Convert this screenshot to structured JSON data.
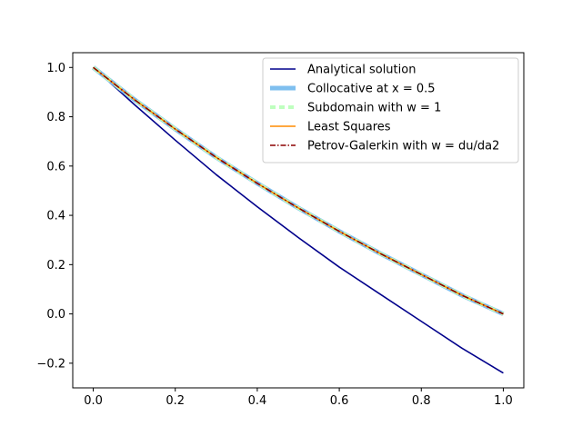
{
  "chart_data": {
    "type": "line",
    "title": "",
    "xlabel": "",
    "ylabel": "",
    "xlim": [
      -0.05,
      1.05
    ],
    "ylim": [
      -0.3,
      1.06
    ],
    "grid": false,
    "legend_position": "top-right",
    "x_ticks": [
      0.0,
      0.2,
      0.4,
      0.6,
      0.8,
      1.0
    ],
    "x_tick_labels": [
      "0.0",
      "0.2",
      "0.4",
      "0.6",
      "0.8",
      "1.0"
    ],
    "y_ticks": [
      -0.2,
      0.0,
      0.2,
      0.4,
      0.6,
      0.8,
      1.0
    ],
    "y_tick_labels": [
      "−0.2",
      "0.0",
      "0.2",
      "0.4",
      "0.6",
      "0.8",
      "1.0"
    ],
    "x": [
      0.0,
      0.1,
      0.2,
      0.3,
      0.4,
      0.5,
      0.6,
      0.7,
      0.8,
      0.9,
      1.0
    ],
    "series": [
      {
        "name": "Analytical solution",
        "color": "#00008b",
        "style": "solid",
        "values": [
          1.0,
          0.85,
          0.705,
          0.565,
          0.435,
          0.31,
          0.19,
          0.08,
          -0.03,
          -0.14,
          -0.24
        ]
      },
      {
        "name": "Collocative at x = 0.5",
        "color": "#7fbfef",
        "style": "thick",
        "values": [
          1.0,
          0.87,
          0.75,
          0.635,
          0.53,
          0.43,
          0.335,
          0.245,
          0.16,
          0.075,
          0.0
        ]
      },
      {
        "name": "Subdomain with w = 1",
        "color": "#bfffbf",
        "style": "dashed",
        "values": [
          1.0,
          0.87,
          0.75,
          0.635,
          0.53,
          0.43,
          0.335,
          0.245,
          0.16,
          0.075,
          0.0
        ]
      },
      {
        "name": "Least Squares",
        "color": "#ff8c00",
        "style": "solid",
        "values": [
          1.0,
          0.87,
          0.75,
          0.635,
          0.53,
          0.43,
          0.335,
          0.245,
          0.16,
          0.075,
          0.0
        ]
      },
      {
        "name": "Petrov-Galerkin with w = du/da2",
        "color": "#8b0000",
        "style": "dashdot",
        "values": [
          1.0,
          0.87,
          0.75,
          0.635,
          0.53,
          0.43,
          0.335,
          0.245,
          0.16,
          0.075,
          0.0
        ]
      }
    ]
  }
}
